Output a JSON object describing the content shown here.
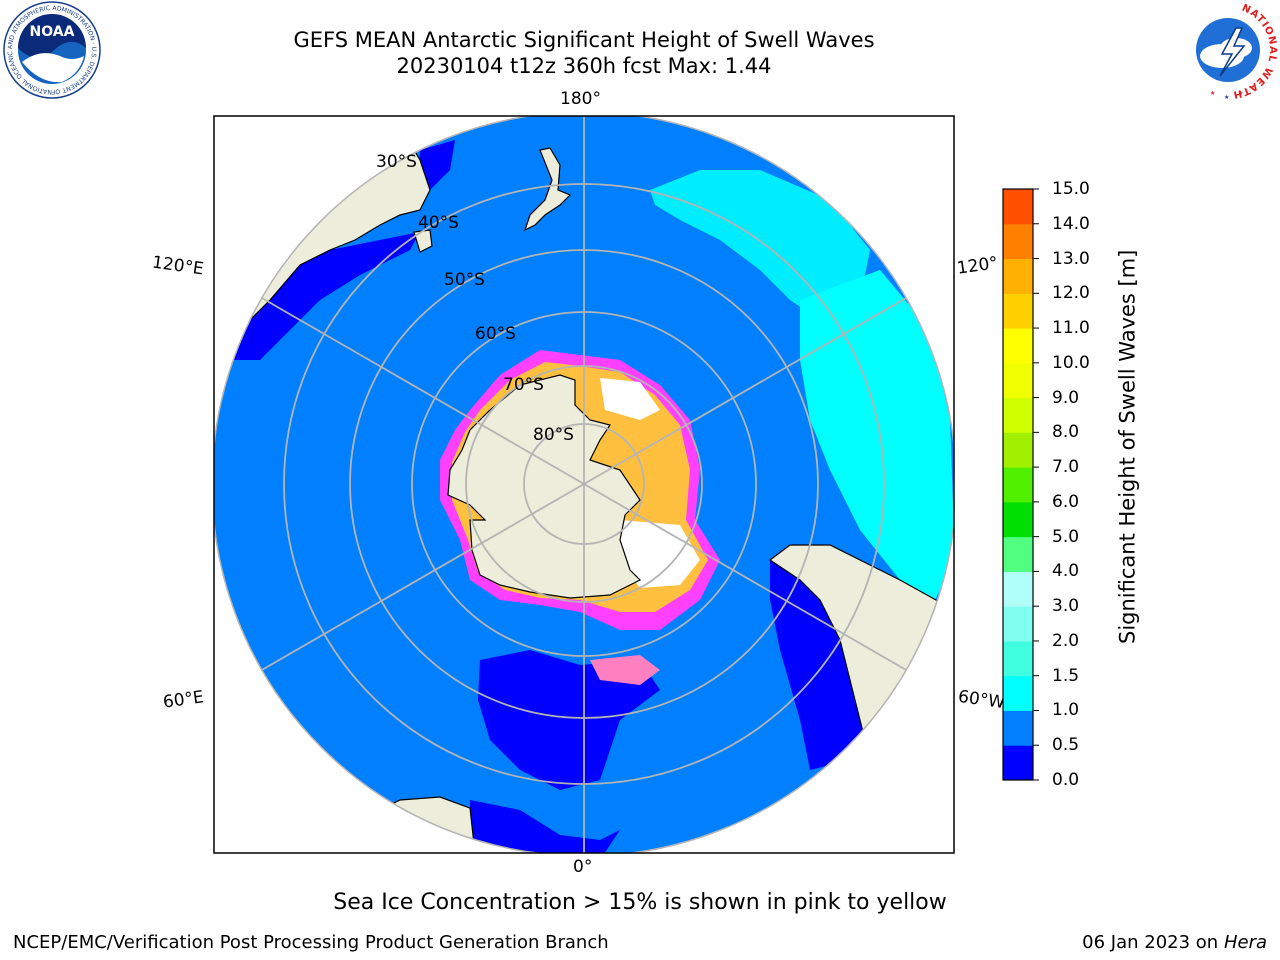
{
  "title": {
    "line1": "GEFS MEAN Antarctic Significant Height of Swell Waves",
    "line2": "20230104 t12z 360h fcst   Max: 1.44"
  },
  "map": {
    "projection": "south-polar-stereographic",
    "ocean_color": "#0080ff",
    "low_swell_color": "#0000ff",
    "mid_swell_color": "#00ffff",
    "land_color": "#ededdc",
    "ice_colors": [
      "#ff40ff",
      "#ff80c0",
      "#ffc040",
      "#ffffff"
    ],
    "lon_labels": [
      "180°",
      "120°E",
      "120°",
      "60°E",
      "60°W",
      "0°"
    ],
    "lat_labels": [
      "30°S",
      "40°S",
      "50°S",
      "60°S",
      "70°S",
      "80°S"
    ]
  },
  "colorbar": {
    "label": "Significant Height of Swell Waves [m]",
    "ticks": [
      "15.0",
      "14.0",
      "13.0",
      "12.0",
      "11.0",
      "10.0",
      "9.0",
      "8.0",
      "7.0",
      "6.0",
      "5.0",
      "4.0",
      "3.0",
      "2.0",
      "1.5",
      "1.0",
      "0.5",
      "0.0"
    ],
    "colors": [
      "#0000ff",
      "#0080ff",
      "#00ffff",
      "#40ffe0",
      "#80fff0",
      "#b0fff8",
      "#50ff80",
      "#00e000",
      "#50f000",
      "#a0f000",
      "#d0ff00",
      "#f0ff00",
      "#ffff00",
      "#ffd000",
      "#ffb000",
      "#ff8000",
      "#ff5000",
      "#ff2000",
      "#ff0000"
    ]
  },
  "note": "Sea Ice Concentration > 15% is shown in pink to yellow",
  "footer": {
    "left": "NCEP/EMC/Verification Post Processing Product Generation Branch",
    "date": "06 Jan 2023 on",
    "host": "Hera"
  },
  "logos": {
    "noaa_text": "NOAA",
    "noaa_ring": "NATIONAL OCEANIC AND ATMOSPHERIC ADMINISTRATION · U.S. DEPARTMENT OF COMMERCE",
    "nws_ring": "NATIONAL WEATHER SERVICE"
  }
}
